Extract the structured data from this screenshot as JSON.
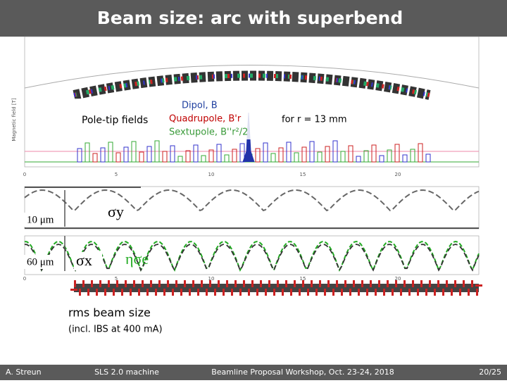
{
  "title": "Beam size: arc with superbend",
  "annotations": {
    "pole_tip": "Pole-tip fields",
    "dipol": "Dipol, B",
    "quad": "Quadrupole, B'r",
    "sext": "Sextupole, B''r²/2",
    "radius": "for r = 13 mm",
    "ten_um": "10 μm",
    "sixty_um": "60 μm",
    "sigma_y": "σy",
    "sigma_x": "σx",
    "eta_sigma": "ησe",
    "rms": "rms beam size",
    "ibs": "(incl. IBS at 400 mA)"
  },
  "field_plot": {
    "y_label": "Magnetic field [T]",
    "x_ticks": [
      "0",
      "5",
      "10",
      "15",
      "20"
    ]
  },
  "beam_plot": {
    "x_ticks": [
      "0",
      "5",
      "10",
      "15",
      "20"
    ]
  },
  "footer": {
    "author": "A. Streun",
    "talk": "SLS 2.0 machine",
    "event": "Beamline Proposal Workshop, Oct. 23-24, 2018",
    "page": "20/25"
  }
}
